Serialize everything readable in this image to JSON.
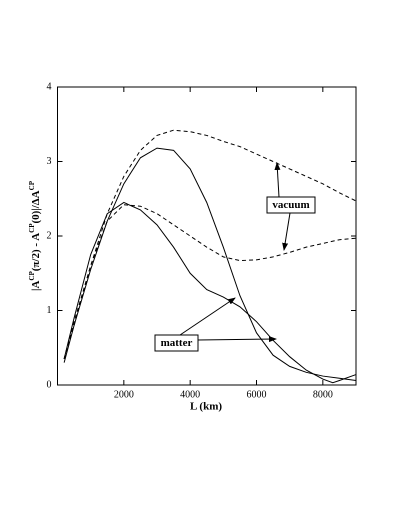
{
  "chart_data": {
    "type": "line",
    "xlabel": "L (km)",
    "ylabel": [
      {
        "text": "|A",
        "sup": false
      },
      {
        "text": "CP",
        "sup": true
      },
      {
        "text": "(π/2) - A",
        "sup": false
      },
      {
        "text": "CP",
        "sup": true
      },
      {
        "text": "(0)|/ΔA",
        "sup": false
      },
      {
        "text": "CP",
        "sup": true
      }
    ],
    "xlim": [
      0,
      9000
    ],
    "xticks": [
      2000,
      4000,
      6000,
      8000
    ],
    "ylim": [
      0,
      4
    ],
    "yticks": [
      0,
      1,
      2,
      3,
      4
    ],
    "annotations": [
      "vacuum",
      "matter"
    ],
    "series": [
      {
        "color": "#000000",
        "dashed": true,
        "x": [
          200,
          500,
          1000,
          1500,
          2000,
          2500,
          3000,
          3500,
          4000,
          4500,
          5000,
          5500,
          6000,
          6500,
          7000,
          7500,
          8000,
          8500,
          9000
        ],
        "values": [
          0.35,
          0.8,
          1.6,
          2.3,
          2.8,
          3.15,
          3.35,
          3.42,
          3.4,
          3.35,
          3.27,
          3.2,
          3.1,
          3.0,
          2.9,
          2.8,
          2.7,
          2.58,
          2.47
        ]
      },
      {
        "color": "#000000",
        "dashed": true,
        "x": [
          200,
          500,
          1000,
          1500,
          2000,
          2500,
          3000,
          3500,
          4000,
          4500,
          5000,
          5500,
          6000,
          6500,
          7000,
          7500,
          8000,
          8500,
          9000
        ],
        "values": [
          0.35,
          0.85,
          1.6,
          2.2,
          2.42,
          2.4,
          2.3,
          2.15,
          2.0,
          1.85,
          1.72,
          1.67,
          1.68,
          1.72,
          1.78,
          1.85,
          1.9,
          1.95,
          1.97
        ]
      },
      {
        "color": "#000000",
        "dashed": false,
        "x": [
          200,
          500,
          1000,
          1500,
          2000,
          2500,
          3000,
          3500,
          4000,
          4500,
          5000,
          5500,
          6000,
          6500,
          7000,
          7500,
          8000,
          8500,
          9000
        ],
        "values": [
          0.3,
          0.8,
          1.55,
          2.2,
          2.7,
          3.05,
          3.18,
          3.15,
          2.9,
          2.45,
          1.85,
          1.2,
          0.7,
          0.4,
          0.25,
          0.17,
          0.12,
          0.09,
          0.06
        ]
      },
      {
        "color": "#000000",
        "dashed": false,
        "x": [
          200,
          500,
          1000,
          1500,
          2000,
          2500,
          3000,
          3500,
          4000,
          4500,
          5000,
          5500,
          6000,
          6500,
          7000,
          7500,
          8000,
          8300,
          8500,
          9000
        ],
        "values": [
          0.35,
          0.9,
          1.75,
          2.3,
          2.45,
          2.35,
          2.15,
          1.85,
          1.5,
          1.28,
          1.18,
          1.05,
          0.85,
          0.6,
          0.38,
          0.2,
          0.08,
          0.03,
          0.06,
          0.14
        ]
      }
    ]
  }
}
